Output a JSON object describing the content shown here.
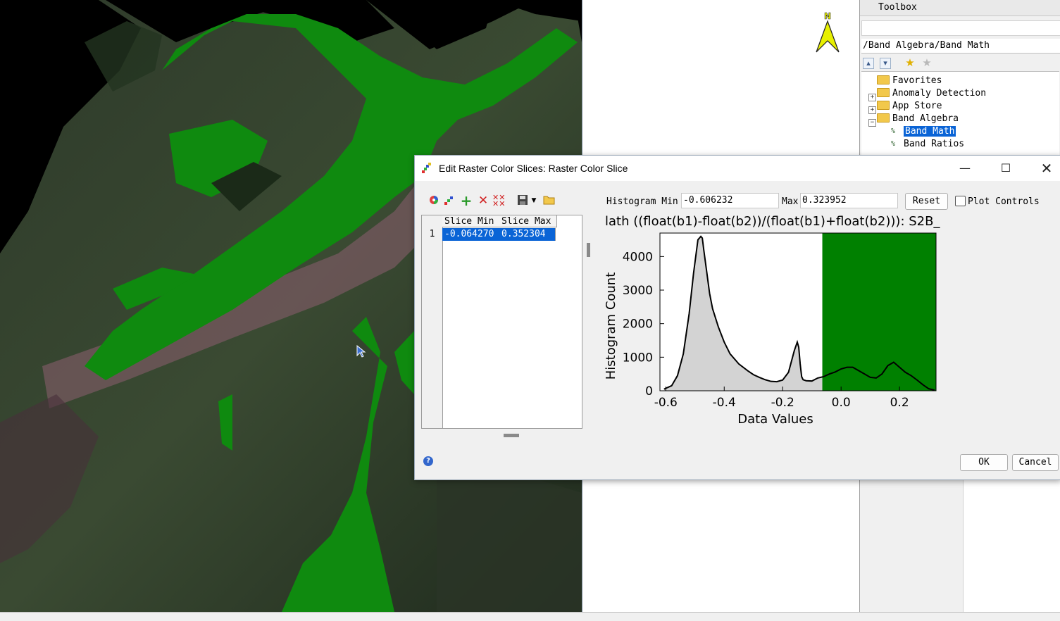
{
  "toolbox": {
    "title": "Toolbox",
    "path": "/Band Algebra/Band Math",
    "tree": [
      {
        "label": "Favorites",
        "kind": "folder",
        "expand": "",
        "level": 0
      },
      {
        "label": "Anomaly Detection",
        "kind": "folder",
        "expand": "+",
        "level": 0
      },
      {
        "label": "App Store",
        "kind": "folder",
        "expand": "+",
        "level": 0
      },
      {
        "label": "Band Algebra",
        "kind": "folder",
        "expand": "-",
        "level": 0
      },
      {
        "label": "Band Math",
        "kind": "tool",
        "expand": "",
        "level": 1,
        "selected": true
      },
      {
        "label": "Band Ratios",
        "kind": "tool",
        "expand": "",
        "level": 1
      }
    ]
  },
  "map": {
    "north_label": "N"
  },
  "dialog": {
    "title": "Edit Raster Color Slices: Raster Color Slice",
    "histogram_min_label": "Histogram Min",
    "histogram_min": "-0.606232",
    "max_label": "Max",
    "histogram_max": "0.323952",
    "reset_label": "Reset",
    "plot_controls_label": "Plot Controls",
    "ok_label": "OK",
    "cancel_label": "Cancel",
    "help_label": "?",
    "table": {
      "columns": [
        "Slice Min",
        "Slice Max"
      ],
      "rows": [
        {
          "num": "1",
          "min": "-0.064270",
          "max": "0.352304"
        }
      ]
    }
  },
  "chart_data": {
    "type": "area",
    "title": "lath ((float(b1)-float(b2))/(float(b1)+float(b2))): S2B_",
    "xlabel": "Data Values",
    "ylabel": "Histogram Count",
    "xlim": [
      -0.62,
      0.325
    ],
    "ylim": [
      0,
      4700
    ],
    "xticks": [
      "-0.6",
      "-0.4",
      "-0.2",
      "0.0",
      "0.2"
    ],
    "yticks": [
      "0",
      "1000",
      "2000",
      "3000",
      "4000"
    ],
    "slice": {
      "min": -0.06427,
      "max": 0.352304,
      "color": "#008000"
    },
    "fill_color": "#d3d3d3",
    "series": [
      {
        "x": [
          -0.606,
          -0.58,
          -0.56,
          -0.54,
          -0.52,
          -0.505,
          -0.49,
          -0.48,
          -0.475,
          -0.47,
          -0.46,
          -0.45,
          -0.44,
          -0.42,
          -0.4,
          -0.38,
          -0.35,
          -0.32,
          -0.3,
          -0.28,
          -0.26,
          -0.24,
          -0.22,
          -0.2,
          -0.18,
          -0.16,
          -0.15,
          -0.145,
          -0.14,
          -0.135,
          -0.13,
          -0.12,
          -0.1,
          -0.08,
          -0.06,
          -0.04,
          -0.02,
          0.0,
          0.02,
          0.04,
          0.06,
          0.08,
          0.1,
          0.12,
          0.14,
          0.16,
          0.18,
          0.2,
          0.22,
          0.24,
          0.26,
          0.28,
          0.3,
          0.32
        ],
        "y": [
          50,
          150,
          450,
          1100,
          2300,
          3500,
          4500,
          4600,
          4550,
          4200,
          3550,
          2900,
          2450,
          1900,
          1450,
          1100,
          800,
          600,
          480,
          400,
          330,
          280,
          270,
          320,
          550,
          1200,
          1450,
          1300,
          800,
          420,
          330,
          300,
          290,
          380,
          420,
          500,
          560,
          650,
          700,
          700,
          600,
          500,
          400,
          380,
          500,
          750,
          850,
          700,
          550,
          450,
          320,
          180,
          60,
          20
        ]
      }
    ]
  }
}
